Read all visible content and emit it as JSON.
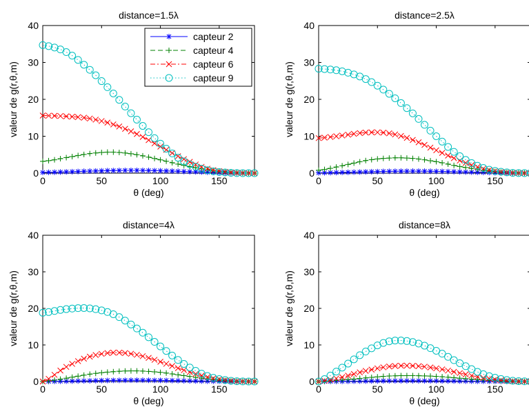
{
  "chart_data": [
    {
      "type": "line",
      "title": "distance=1.5λ",
      "xlabel": "θ (deg)",
      "ylabel": "valeur de g(r,θ,m)",
      "xlim": [
        0,
        180
      ],
      "ylim": [
        0,
        40
      ],
      "xticks": [
        0,
        50,
        100,
        150
      ],
      "yticks": [
        0,
        10,
        20,
        30,
        40
      ],
      "legend": "top-right",
      "series": [
        {
          "name": "capteur 2",
          "color": "#0000ff",
          "marker": "asterisk",
          "line": "solid",
          "x": [
            0,
            20,
            40,
            60,
            80,
            100,
            120,
            140,
            160,
            180
          ],
          "y": [
            0.2,
            0.35,
            0.55,
            0.7,
            0.75,
            0.65,
            0.45,
            0.25,
            0.08,
            0
          ]
        },
        {
          "name": "capteur 4",
          "color": "#008000",
          "marker": "plus",
          "line": "dashed",
          "x": [
            0,
            20,
            40,
            60,
            80,
            100,
            120,
            140,
            160,
            180
          ],
          "y": [
            3.2,
            4.2,
            5.3,
            5.7,
            5.0,
            3.6,
            2.1,
            0.9,
            0.2,
            0
          ]
        },
        {
          "name": "capteur 6",
          "color": "#ff0000",
          "marker": "x",
          "line": "dashdot",
          "x": [
            0,
            20,
            40,
            60,
            80,
            100,
            120,
            140,
            160,
            180
          ],
          "y": [
            15.6,
            15.4,
            14.8,
            13.2,
            10.6,
            7.2,
            3.8,
            1.2,
            0.2,
            0
          ]
        },
        {
          "name": "capteur 9",
          "color": "#00bfbf",
          "marker": "circle",
          "line": "dotted",
          "x": [
            0,
            20,
            40,
            60,
            80,
            100,
            120,
            140,
            160,
            180
          ],
          "y": [
            34.7,
            32.8,
            28.0,
            21.6,
            14.5,
            8.0,
            3.2,
            0.8,
            0.1,
            0
          ]
        }
      ]
    },
    {
      "type": "line",
      "title": "distance=2.5λ",
      "xlabel": "θ (deg)",
      "ylabel": "valeur de g(r,θ,m)",
      "xlim": [
        0,
        180
      ],
      "ylim": [
        0,
        40
      ],
      "xticks": [
        0,
        50,
        100,
        150
      ],
      "yticks": [
        0,
        10,
        20,
        30,
        40
      ],
      "series": [
        {
          "color": "#0000ff",
          "marker": "asterisk",
          "line": "solid",
          "x": [
            0,
            20,
            40,
            60,
            80,
            100,
            120,
            140,
            160,
            180
          ],
          "y": [
            0.1,
            0.2,
            0.35,
            0.5,
            0.55,
            0.5,
            0.35,
            0.2,
            0.05,
            0
          ]
        },
        {
          "color": "#008000",
          "marker": "plus",
          "line": "dashed",
          "x": [
            0,
            20,
            40,
            60,
            80,
            100,
            120,
            140,
            160,
            180
          ],
          "y": [
            0.8,
            2.0,
            3.4,
            4.1,
            4.0,
            3.1,
            1.8,
            0.8,
            0.2,
            0
          ]
        },
        {
          "color": "#ff0000",
          "marker": "x",
          "line": "dashdot",
          "x": [
            0,
            20,
            40,
            60,
            80,
            100,
            120,
            140,
            160,
            180
          ],
          "y": [
            9.5,
            10.2,
            11.0,
            10.8,
            9.0,
            6.2,
            3.4,
            1.2,
            0.2,
            0
          ]
        },
        {
          "color": "#00bfbf",
          "marker": "circle",
          "line": "dotted",
          "x": [
            0,
            20,
            40,
            60,
            80,
            100,
            120,
            140,
            160,
            180
          ],
          "y": [
            28.3,
            27.6,
            25.5,
            21.5,
            16.2,
            10.0,
            4.6,
            1.4,
            0.2,
            0
          ]
        }
      ]
    },
    {
      "type": "line",
      "title": "distance=4λ",
      "xlabel": "θ (deg)",
      "ylabel": "valeur de g(r,θ,m)",
      "xlim": [
        0,
        180
      ],
      "ylim": [
        0,
        40
      ],
      "xticks": [
        0,
        50,
        100,
        150
      ],
      "yticks": [
        0,
        10,
        20,
        30,
        40
      ],
      "series": [
        {
          "color": "#0000ff",
          "marker": "asterisk",
          "line": "solid",
          "x": [
            0,
            20,
            40,
            60,
            80,
            100,
            120,
            140,
            160,
            180
          ],
          "y": [
            0,
            0.1,
            0.2,
            0.3,
            0.35,
            0.3,
            0.2,
            0.1,
            0.03,
            0
          ]
        },
        {
          "color": "#008000",
          "marker": "plus",
          "line": "dashed",
          "x": [
            0,
            20,
            40,
            60,
            80,
            100,
            120,
            140,
            160,
            180
          ],
          "y": [
            0,
            0.9,
            2.0,
            2.7,
            2.9,
            2.5,
            1.6,
            0.7,
            0.15,
            0
          ]
        },
        {
          "color": "#ff0000",
          "marker": "x",
          "line": "dashdot",
          "x": [
            0,
            20,
            40,
            60,
            80,
            100,
            120,
            140,
            160,
            180
          ],
          "y": [
            0,
            4.0,
            6.8,
            7.9,
            7.3,
            5.4,
            3.1,
            1.2,
            0.2,
            0
          ]
        },
        {
          "color": "#00bfbf",
          "marker": "circle",
          "line": "dotted",
          "x": [
            0,
            20,
            40,
            60,
            80,
            100,
            120,
            140,
            160,
            180
          ],
          "y": [
            18.8,
            19.8,
            20.0,
            18.4,
            14.5,
            9.6,
            4.8,
            1.5,
            0.2,
            0
          ]
        }
      ]
    },
    {
      "type": "line",
      "title": "distance=8λ",
      "xlabel": "θ (deg)",
      "ylabel": "valeur de g(r,θ,m)",
      "xlim": [
        0,
        180
      ],
      "ylim": [
        0,
        40
      ],
      "xticks": [
        0,
        50,
        100,
        150
      ],
      "yticks": [
        0,
        10,
        20,
        30,
        40
      ],
      "series": [
        {
          "color": "#0000ff",
          "marker": "asterisk",
          "line": "solid",
          "x": [
            0,
            20,
            40,
            60,
            80,
            100,
            120,
            140,
            160,
            180
          ],
          "y": [
            0,
            0.05,
            0.12,
            0.18,
            0.2,
            0.18,
            0.12,
            0.06,
            0.02,
            0
          ]
        },
        {
          "color": "#008000",
          "marker": "plus",
          "line": "dashed",
          "x": [
            0,
            20,
            40,
            60,
            80,
            100,
            120,
            140,
            160,
            180
          ],
          "y": [
            0,
            0.4,
            1.0,
            1.5,
            1.6,
            1.4,
            0.9,
            0.4,
            0.1,
            0
          ]
        },
        {
          "color": "#ff0000",
          "marker": "x",
          "line": "dashdot",
          "x": [
            0,
            20,
            40,
            60,
            80,
            100,
            120,
            140,
            160,
            180
          ],
          "y": [
            0,
            1.2,
            2.9,
            4.1,
            4.3,
            3.6,
            2.3,
            1.0,
            0.2,
            0
          ]
        },
        {
          "color": "#00bfbf",
          "marker": "circle",
          "line": "dotted",
          "x": [
            0,
            20,
            40,
            60,
            80,
            100,
            120,
            140,
            160,
            180
          ],
          "y": [
            0,
            3.8,
            8.2,
            11.0,
            10.8,
            8.4,
            5.0,
            2.0,
            0.4,
            0
          ]
        }
      ]
    }
  ]
}
